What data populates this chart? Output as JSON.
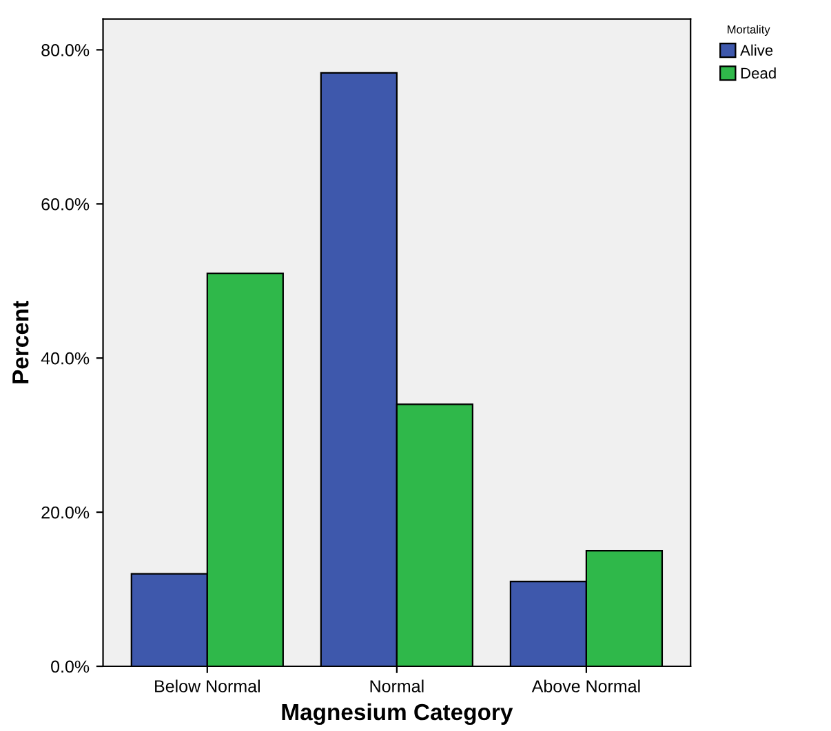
{
  "chart_data": {
    "type": "bar",
    "xlabel": "Magnesium Category",
    "ylabel": "Percent",
    "legend_title": "Mortality",
    "legend": "top right",
    "categories": [
      "Below Normal",
      "Normal",
      "Above Normal"
    ],
    "series": [
      {
        "name": "Alive",
        "color": "#3e58ac",
        "values": [
          12,
          77,
          11
        ]
      },
      {
        "name": "Dead",
        "color": "#2fb84a",
        "values": [
          51,
          34,
          15
        ]
      }
    ],
    "ylim": [
      0,
      84
    ],
    "yticks": [
      {
        "value": 0,
        "label": "0.0%"
      },
      {
        "value": 20,
        "label": "20.0%"
      },
      {
        "value": 40,
        "label": "40.0%"
      },
      {
        "value": 60,
        "label": "60.0%"
      },
      {
        "value": 80,
        "label": "80.0%"
      }
    ],
    "grid": false
  }
}
